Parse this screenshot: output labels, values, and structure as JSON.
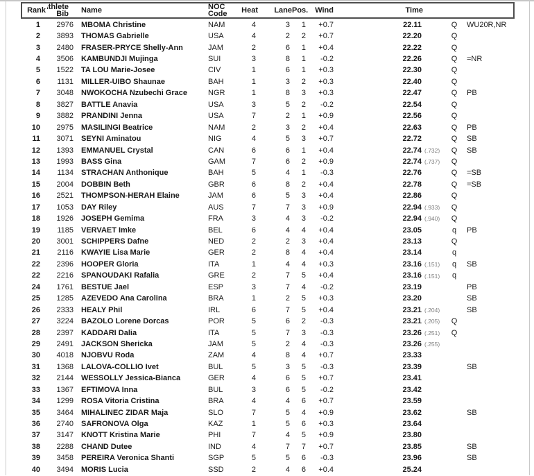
{
  "header": {
    "rank": "Rank",
    "bib_line1": "Athlete",
    "bib_line2": "Bib",
    "name": "Name",
    "noc_line1": "NOC",
    "noc_line2": "Code",
    "heat": "Heat",
    "lane": "Lane",
    "pos": "Pos.",
    "wind": "Wind",
    "time": "Time"
  },
  "colors": {
    "text": "#1a1a1a",
    "fraction_text": "#7f7f7f",
    "header_box_border": "#4e4e4e",
    "page_edge": "#c9c9c9"
  },
  "rows": [
    {
      "rank": "1",
      "bib": "2976",
      "name": "MBOMA Christine",
      "noc": "NAM",
      "heat": "4",
      "lane": "3",
      "pos": "1",
      "wind": "+0.7",
      "time": "22.11",
      "frac": "",
      "qual": "Q",
      "notes": "WU20R,NR"
    },
    {
      "rank": "2",
      "bib": "3893",
      "name": "THOMAS Gabrielle",
      "noc": "USA",
      "heat": "4",
      "lane": "2",
      "pos": "2",
      "wind": "+0.7",
      "time": "22.20",
      "frac": "",
      "qual": "Q",
      "notes": ""
    },
    {
      "rank": "3",
      "bib": "2480",
      "name": "FRASER-PRYCE Shelly-Ann",
      "noc": "JAM",
      "heat": "2",
      "lane": "6",
      "pos": "1",
      "wind": "+0.4",
      "time": "22.22",
      "frac": "",
      "qual": "Q",
      "notes": ""
    },
    {
      "rank": "4",
      "bib": "3506",
      "name": "KAMBUNDJI Mujinga",
      "noc": "SUI",
      "heat": "3",
      "lane": "8",
      "pos": "1",
      "wind": "-0.2",
      "time": "22.26",
      "frac": "",
      "qual": "Q",
      "notes": "=NR"
    },
    {
      "rank": "5",
      "bib": "1522",
      "name": "TA LOU Marie-Josee",
      "noc": "CIV",
      "heat": "1",
      "lane": "6",
      "pos": "1",
      "wind": "+0.3",
      "time": "22.30",
      "frac": "",
      "qual": "Q",
      "notes": ""
    },
    {
      "rank": "6",
      "bib": "1131",
      "name": "MILLER-UIBO Shaunae",
      "noc": "BAH",
      "heat": "1",
      "lane": "3",
      "pos": "2",
      "wind": "+0.3",
      "time": "22.40",
      "frac": "",
      "qual": "Q",
      "notes": ""
    },
    {
      "rank": "7",
      "bib": "3048",
      "name": "NWOKOCHA Nzubechi Grace",
      "noc": "NGR",
      "heat": "1",
      "lane": "8",
      "pos": "3",
      "wind": "+0.3",
      "time": "22.47",
      "frac": "",
      "qual": "Q",
      "notes": "PB"
    },
    {
      "rank": "8",
      "bib": "3827",
      "name": "BATTLE Anavia",
      "noc": "USA",
      "heat": "3",
      "lane": "5",
      "pos": "2",
      "wind": "-0.2",
      "time": "22.54",
      "frac": "",
      "qual": "Q",
      "notes": ""
    },
    {
      "rank": "9",
      "bib": "3882",
      "name": "PRANDINI Jenna",
      "noc": "USA",
      "heat": "7",
      "lane": "2",
      "pos": "1",
      "wind": "+0.9",
      "time": "22.56",
      "frac": "",
      "qual": "Q",
      "notes": ""
    },
    {
      "rank": "10",
      "bib": "2975",
      "name": "MASILINGI Beatrice",
      "noc": "NAM",
      "heat": "2",
      "lane": "3",
      "pos": "2",
      "wind": "+0.4",
      "time": "22.63",
      "frac": "",
      "qual": "Q",
      "notes": "PB"
    },
    {
      "rank": "11",
      "bib": "3071",
      "name": "SEYNI Aminatou",
      "noc": "NIG",
      "heat": "4",
      "lane": "5",
      "pos": "3",
      "wind": "+0.7",
      "time": "22.72",
      "frac": "",
      "qual": "Q",
      "notes": "SB"
    },
    {
      "rank": "12",
      "bib": "1393",
      "name": "EMMANUEL Crystal",
      "noc": "CAN",
      "heat": "6",
      "lane": "6",
      "pos": "1",
      "wind": "+0.4",
      "time": "22.74",
      "frac": "(.732)",
      "qual": "Q",
      "notes": "SB"
    },
    {
      "rank": "13",
      "bib": "1993",
      "name": "BASS Gina",
      "noc": "GAM",
      "heat": "7",
      "lane": "6",
      "pos": "2",
      "wind": "+0.9",
      "time": "22.74",
      "frac": "(.737)",
      "qual": "Q",
      "notes": ""
    },
    {
      "rank": "14",
      "bib": "1134",
      "name": "STRACHAN Anthonique",
      "noc": "BAH",
      "heat": "5",
      "lane": "4",
      "pos": "1",
      "wind": "-0.3",
      "time": "22.76",
      "frac": "",
      "qual": "Q",
      "notes": "=SB"
    },
    {
      "rank": "15",
      "bib": "2004",
      "name": "DOBBIN Beth",
      "noc": "GBR",
      "heat": "6",
      "lane": "8",
      "pos": "2",
      "wind": "+0.4",
      "time": "22.78",
      "frac": "",
      "qual": "Q",
      "notes": "=SB"
    },
    {
      "rank": "16",
      "bib": "2521",
      "name": "THOMPSON-HERAH Elaine",
      "noc": "JAM",
      "heat": "6",
      "lane": "5",
      "pos": "3",
      "wind": "+0.4",
      "time": "22.86",
      "frac": "",
      "qual": "Q",
      "notes": ""
    },
    {
      "rank": "17",
      "bib": "1053",
      "name": "DAY Riley",
      "noc": "AUS",
      "heat": "7",
      "lane": "7",
      "pos": "3",
      "wind": "+0.9",
      "time": "22.94",
      "frac": "(.933)",
      "qual": "Q",
      "notes": ""
    },
    {
      "rank": "18",
      "bib": "1926",
      "name": "JOSEPH Gemima",
      "noc": "FRA",
      "heat": "3",
      "lane": "4",
      "pos": "3",
      "wind": "-0.2",
      "time": "22.94",
      "frac": "(.940)",
      "qual": "Q",
      "notes": ""
    },
    {
      "rank": "19",
      "bib": "1185",
      "name": "VERVAET Imke",
      "noc": "BEL",
      "heat": "6",
      "lane": "4",
      "pos": "4",
      "wind": "+0.4",
      "time": "23.05",
      "frac": "",
      "qual": "q",
      "notes": "PB"
    },
    {
      "rank": "20",
      "bib": "3001",
      "name": "SCHIPPERS Dafne",
      "noc": "NED",
      "heat": "2",
      "lane": "2",
      "pos": "3",
      "wind": "+0.4",
      "time": "23.13",
      "frac": "",
      "qual": "Q",
      "notes": ""
    },
    {
      "rank": "21",
      "bib": "2116",
      "name": "KWAYIE Lisa Marie",
      "noc": "GER",
      "heat": "2",
      "lane": "8",
      "pos": "4",
      "wind": "+0.4",
      "time": "23.14",
      "frac": "",
      "qual": "q",
      "notes": ""
    },
    {
      "rank": "22",
      "bib": "2396",
      "name": "HOOPER Gloria",
      "noc": "ITA",
      "heat": "1",
      "lane": "4",
      "pos": "4",
      "wind": "+0.3",
      "time": "23.16",
      "frac": "(.151)",
      "qual": "q",
      "notes": "SB"
    },
    {
      "rank": "22",
      "bib": "2216",
      "name": "SPANOUDAKI Rafalia",
      "noc": "GRE",
      "heat": "2",
      "lane": "7",
      "pos": "5",
      "wind": "+0.4",
      "time": "23.16",
      "frac": "(.151)",
      "qual": "q",
      "notes": ""
    },
    {
      "rank": "24",
      "bib": "1761",
      "name": "BESTUE Jael",
      "noc": "ESP",
      "heat": "3",
      "lane": "7",
      "pos": "4",
      "wind": "-0.2",
      "time": "23.19",
      "frac": "",
      "qual": "",
      "notes": "PB"
    },
    {
      "rank": "25",
      "bib": "1285",
      "name": "AZEVEDO Ana Carolina",
      "noc": "BRA",
      "heat": "1",
      "lane": "2",
      "pos": "5",
      "wind": "+0.3",
      "time": "23.20",
      "frac": "",
      "qual": "",
      "notes": "SB"
    },
    {
      "rank": "26",
      "bib": "2333",
      "name": "HEALY Phil",
      "noc": "IRL",
      "heat": "6",
      "lane": "7",
      "pos": "5",
      "wind": "+0.4",
      "time": "23.21",
      "frac": "(.204)",
      "qual": "",
      "notes": "SB"
    },
    {
      "rank": "27",
      "bib": "3224",
      "name": "BAZOLO Lorene Dorcas",
      "noc": "POR",
      "heat": "5",
      "lane": "6",
      "pos": "2",
      "wind": "-0.3",
      "time": "23.21",
      "frac": "(.205)",
      "qual": "Q",
      "notes": ""
    },
    {
      "rank": "28",
      "bib": "2397",
      "name": "KADDARI Dalia",
      "noc": "ITA",
      "heat": "5",
      "lane": "7",
      "pos": "3",
      "wind": "-0.3",
      "time": "23.26",
      "frac": "(.251)",
      "qual": "Q",
      "notes": ""
    },
    {
      "rank": "29",
      "bib": "2491",
      "name": "JACKSON Shericka",
      "noc": "JAM",
      "heat": "5",
      "lane": "2",
      "pos": "4",
      "wind": "-0.3",
      "time": "23.26",
      "frac": "(.255)",
      "qual": "",
      "notes": ""
    },
    {
      "rank": "30",
      "bib": "4018",
      "name": "NJOBVU Roda",
      "noc": "ZAM",
      "heat": "4",
      "lane": "8",
      "pos": "4",
      "wind": "+0.7",
      "time": "23.33",
      "frac": "",
      "qual": "",
      "notes": ""
    },
    {
      "rank": "31",
      "bib": "1368",
      "name": "LALOVA-COLLIO Ivet",
      "noc": "BUL",
      "heat": "5",
      "lane": "3",
      "pos": "5",
      "wind": "-0.3",
      "time": "23.39",
      "frac": "",
      "qual": "",
      "notes": "SB"
    },
    {
      "rank": "32",
      "bib": "2144",
      "name": "WESSOLLY Jessica-Bianca",
      "noc": "GER",
      "heat": "4",
      "lane": "6",
      "pos": "5",
      "wind": "+0.7",
      "time": "23.41",
      "frac": "",
      "qual": "",
      "notes": ""
    },
    {
      "rank": "33",
      "bib": "1367",
      "name": "EFTIMOVA Inna",
      "noc": "BUL",
      "heat": "3",
      "lane": "6",
      "pos": "5",
      "wind": "-0.2",
      "time": "23.42",
      "frac": "",
      "qual": "",
      "notes": ""
    },
    {
      "rank": "34",
      "bib": "1299",
      "name": "ROSA Vitoria Cristina",
      "noc": "BRA",
      "heat": "4",
      "lane": "4",
      "pos": "6",
      "wind": "+0.7",
      "time": "23.59",
      "frac": "",
      "qual": "",
      "notes": ""
    },
    {
      "rank": "35",
      "bib": "3464",
      "name": "MIHALINEC ZIDAR Maja",
      "noc": "SLO",
      "heat": "7",
      "lane": "5",
      "pos": "4",
      "wind": "+0.9",
      "time": "23.62",
      "frac": "",
      "qual": "",
      "notes": "SB"
    },
    {
      "rank": "36",
      "bib": "2740",
      "name": "SAFRONOVA Olga",
      "noc": "KAZ",
      "heat": "1",
      "lane": "5",
      "pos": "6",
      "wind": "+0.3",
      "time": "23.64",
      "frac": "",
      "qual": "",
      "notes": ""
    },
    {
      "rank": "37",
      "bib": "3147",
      "name": "KNOTT Kristina Marie",
      "noc": "PHI",
      "heat": "7",
      "lane": "4",
      "pos": "5",
      "wind": "+0.9",
      "time": "23.80",
      "frac": "",
      "qual": "",
      "notes": ""
    },
    {
      "rank": "38",
      "bib": "2288",
      "name": "CHAND Dutee",
      "noc": "IND",
      "heat": "4",
      "lane": "7",
      "pos": "7",
      "wind": "+0.7",
      "time": "23.85",
      "frac": "",
      "qual": "",
      "notes": "SB"
    },
    {
      "rank": "39",
      "bib": "3458",
      "name": "PEREIRA Veronica Shanti",
      "noc": "SGP",
      "heat": "5",
      "lane": "5",
      "pos": "6",
      "wind": "-0.3",
      "time": "23.96",
      "frac": "",
      "qual": "",
      "notes": "SB"
    },
    {
      "rank": "40",
      "bib": "3494",
      "name": "MORIS Lucia",
      "noc": "SSD",
      "heat": "2",
      "lane": "4",
      "pos": "6",
      "wind": "+0.4",
      "time": "25.24",
      "frac": "",
      "qual": "",
      "notes": ""
    }
  ]
}
